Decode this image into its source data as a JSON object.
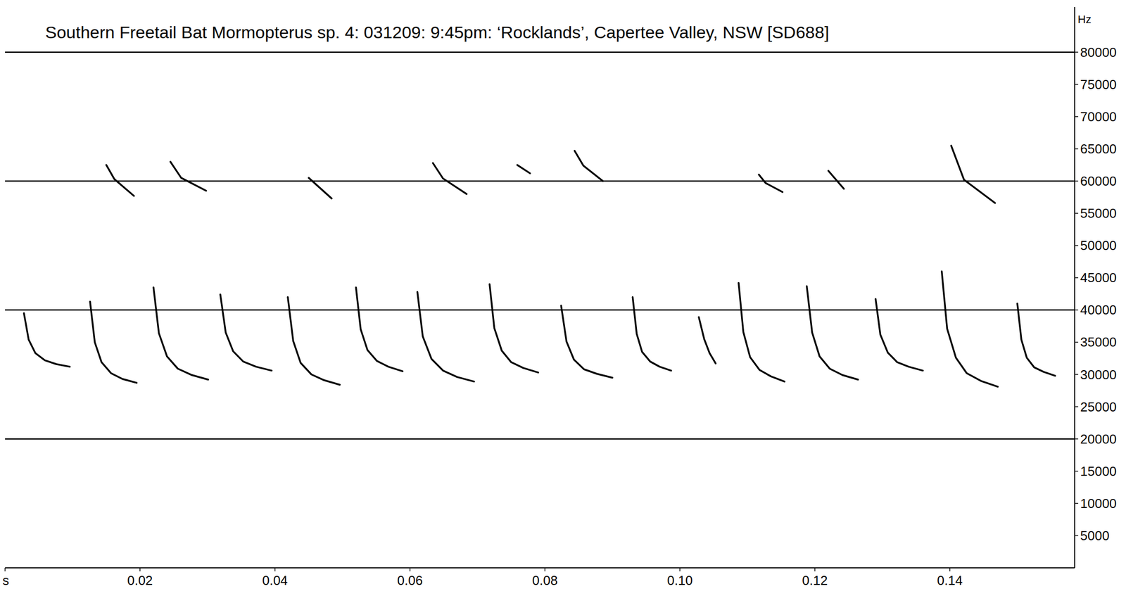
{
  "chart_data": {
    "type": "line",
    "title": "Southern Freetail Bat Mormopterus sp. 4: 031209: 9:45pm: ‘Rocklands’, Capertee Valley, NSW [SD688]",
    "ylabel": "Hz",
    "xlim": [
      0,
      0.1585
    ],
    "ylim": [
      0,
      87000
    ],
    "xticks": [
      {
        "value": 0,
        "label": "s"
      },
      0.02,
      0.04,
      0.06,
      0.08,
      {
        "value": 0.1,
        "label": "0.10"
      },
      0.12,
      0.14
    ],
    "yticks": [
      5000,
      10000,
      15000,
      20000,
      25000,
      30000,
      35000,
      40000,
      45000,
      50000,
      55000,
      60000,
      65000,
      70000,
      75000,
      80000
    ],
    "ygrid": [
      20000,
      40000,
      60000,
      80000
    ],
    "series": [
      {
        "color": "#000000",
        "x": [
          0.0028,
          0.0035,
          0.0045,
          0.0059,
          0.0076,
          0.0096
        ],
        "values": [
          39500,
          35400,
          33300,
          32200,
          31600,
          31200
        ]
      },
      {
        "color": "#000000",
        "x": [
          0.0126,
          0.0133,
          0.0143,
          0.0157,
          0.0174,
          0.0195
        ],
        "values": [
          41300,
          35000,
          31900,
          30200,
          29300,
          28700
        ]
      },
      {
        "color": "#000000",
        "x": [
          0.022,
          0.0228,
          0.024,
          0.0256,
          0.0277,
          0.0301
        ],
        "values": [
          43500,
          36400,
          32800,
          30900,
          29900,
          29200
        ]
      },
      {
        "color": "#000000",
        "x": [
          0.0319,
          0.0327,
          0.0338,
          0.0353,
          0.0372,
          0.0395
        ],
        "values": [
          42400,
          36500,
          33600,
          32000,
          31200,
          30600
        ]
      },
      {
        "color": "#000000",
        "x": [
          0.0419,
          0.0427,
          0.0438,
          0.0454,
          0.0473,
          0.0496
        ],
        "values": [
          42000,
          35200,
          31800,
          30000,
          29100,
          28400
        ]
      },
      {
        "color": "#000000",
        "x": [
          0.052,
          0.0527,
          0.0537,
          0.0551,
          0.0568,
          0.0589
        ],
        "values": [
          43500,
          37000,
          33800,
          32100,
          31200,
          30500
        ]
      },
      {
        "color": "#000000",
        "x": [
          0.0611,
          0.0619,
          0.0632,
          0.0649,
          0.067,
          0.0695
        ],
        "values": [
          42800,
          35900,
          32400,
          30600,
          29600,
          28900
        ]
      },
      {
        "color": "#000000",
        "x": [
          0.0718,
          0.0725,
          0.0736,
          0.075,
          0.0768,
          0.079
        ],
        "values": [
          44000,
          37200,
          33700,
          31900,
          31000,
          30300
        ]
      },
      {
        "color": "#000000",
        "x": [
          0.0824,
          0.0832,
          0.0843,
          0.0858,
          0.0877,
          0.09
        ],
        "values": [
          40700,
          35100,
          32300,
          30800,
          30100,
          29500
        ]
      },
      {
        "color": "#000000",
        "x": [
          0.093,
          0.0936,
          0.0944,
          0.0956,
          0.097,
          0.0987
        ],
        "values": [
          42000,
          36300,
          33500,
          32000,
          31200,
          30600
        ]
      },
      {
        "color": "#000000",
        "x": [
          0.1028,
          0.1036,
          0.1044,
          0.1053
        ],
        "values": [
          38900,
          35500,
          33300,
          31700
        ]
      },
      {
        "color": "#000000",
        "x": [
          0.1087,
          0.1094,
          0.1104,
          0.1118,
          0.1135,
          0.1155
        ],
        "values": [
          44200,
          36600,
          32700,
          30700,
          29700,
          28900
        ]
      },
      {
        "color": "#000000",
        "x": [
          0.1188,
          0.1196,
          0.1207,
          0.1222,
          0.1241,
          0.1264
        ],
        "values": [
          43700,
          36500,
          32800,
          30900,
          29900,
          29200
        ]
      },
      {
        "color": "#000000",
        "x": [
          0.129,
          0.1297,
          0.1308,
          0.1322,
          0.1339,
          0.136
        ],
        "values": [
          41700,
          36200,
          33400,
          31900,
          31200,
          30600
        ]
      },
      {
        "color": "#000000",
        "x": [
          0.1388,
          0.1396,
          0.1409,
          0.1425,
          0.1446,
          0.1471
        ],
        "values": [
          46000,
          37100,
          32600,
          30200,
          29000,
          28100
        ]
      },
      {
        "color": "#000000",
        "x": [
          0.15,
          0.1506,
          0.1514,
          0.1525,
          0.1539,
          0.1556
        ],
        "values": [
          41000,
          35400,
          32600,
          31100,
          30400,
          29800
        ]
      },
      {
        "color": "#000000",
        "x": [
          0.015,
          0.0162,
          0.0191
        ],
        "values": [
          62500,
          60300,
          57700
        ]
      },
      {
        "color": "#000000",
        "x": [
          0.0245,
          0.0261,
          0.0298
        ],
        "values": [
          63000,
          60500,
          58500
        ]
      },
      {
        "color": "#000000",
        "x": [
          0.045,
          0.0467,
          0.0484
        ],
        "values": [
          60500,
          58900,
          57300
        ]
      },
      {
        "color": "#000000",
        "x": [
          0.0634,
          0.0649,
          0.0684
        ],
        "values": [
          62800,
          60400,
          58000
        ]
      },
      {
        "color": "#000000",
        "x": [
          0.0759,
          0.0778
        ],
        "values": [
          62500,
          61200
        ]
      },
      {
        "color": "#000000",
        "x": [
          0.0844,
          0.0857,
          0.0886
        ],
        "values": [
          64700,
          62400,
          60000
        ]
      },
      {
        "color": "#000000",
        "x": [
          0.1117,
          0.1127,
          0.1152
        ],
        "values": [
          61000,
          59700,
          58300
        ]
      },
      {
        "color": "#000000",
        "x": [
          0.122,
          0.1243
        ],
        "values": [
          61600,
          58800
        ]
      },
      {
        "color": "#000000",
        "x": [
          0.1402,
          0.1421,
          0.1467
        ],
        "values": [
          65500,
          60200,
          56600
        ]
      }
    ]
  }
}
